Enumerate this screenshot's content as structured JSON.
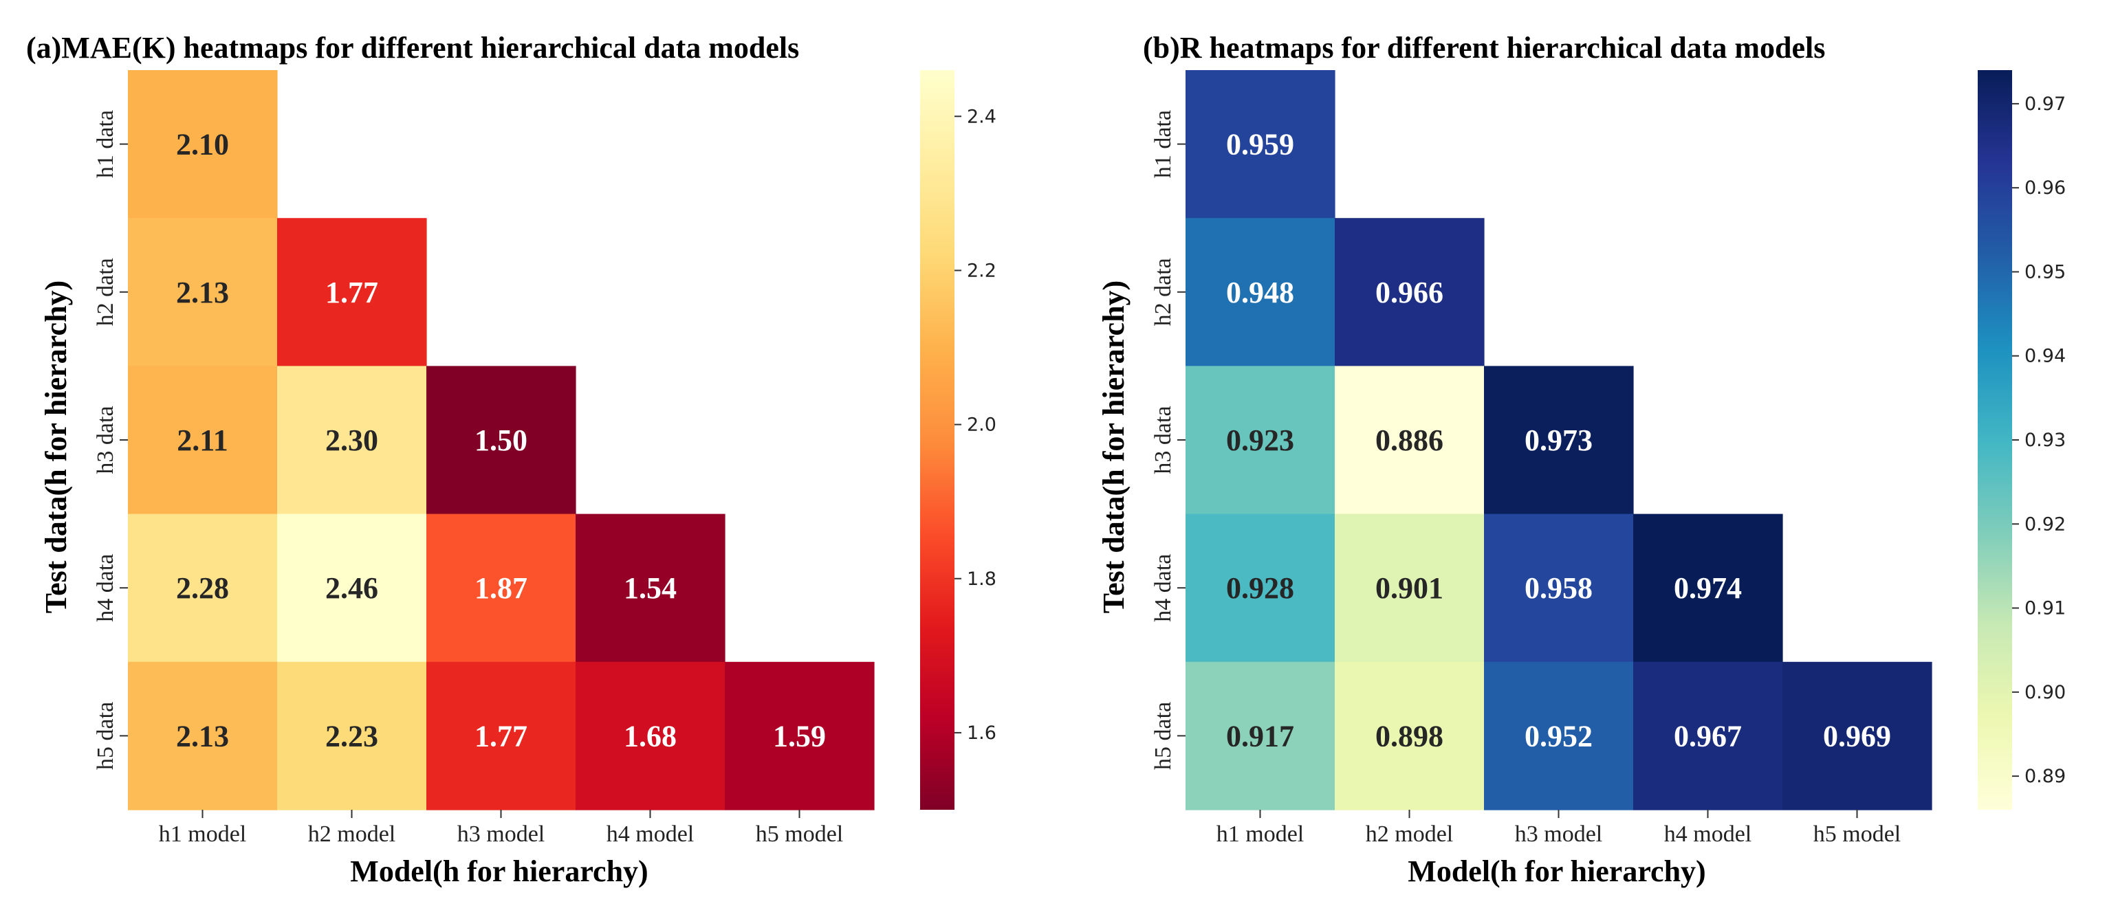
{
  "chart_data": [
    {
      "type": "heatmap",
      "title": "(a)MAE(K) heatmaps for different hierarchical data models",
      "xlabel": "Model(h for hierarchy)",
      "ylabel": "Test data(h for hierarchy)",
      "x_categories": [
        "h1 model",
        "h2 model",
        "h3 model",
        "h4 model",
        "h5 model"
      ],
      "y_categories": [
        "h1 data",
        "h2 data",
        "h3 data",
        "h4 data",
        "h5 data"
      ],
      "values": [
        [
          2.1,
          null,
          null,
          null,
          null
        ],
        [
          2.13,
          1.77,
          null,
          null,
          null
        ],
        [
          2.11,
          2.3,
          1.5,
          null,
          null
        ],
        [
          2.28,
          2.46,
          1.87,
          1.54,
          null
        ],
        [
          2.13,
          2.23,
          1.77,
          1.68,
          1.59
        ]
      ],
      "value_labels": [
        [
          "2.10",
          "",
          "",
          "",
          ""
        ],
        [
          "2.13",
          "1.77",
          "",
          "",
          ""
        ],
        [
          "2.11",
          "2.30",
          "1.50",
          "",
          ""
        ],
        [
          "2.28",
          "2.46",
          "1.87",
          "1.54",
          ""
        ],
        [
          "2.13",
          "2.23",
          "1.77",
          "1.68",
          "1.59"
        ]
      ],
      "colormap": "YlOrRd_r",
      "color_stops": [
        "#800026",
        "#bd0026",
        "#e31a1c",
        "#fc4e2a",
        "#fd8d3c",
        "#feb24c",
        "#fed976",
        "#ffeda0",
        "#ffffcc"
      ],
      "vmin": 1.5,
      "vmax": 2.46,
      "colorbar_ticks": [
        1.6,
        1.8,
        2.0,
        2.2,
        2.4
      ],
      "colorbar_tick_labels": [
        "1.6",
        "1.8",
        "2.0",
        "2.2",
        "2.4"
      ]
    },
    {
      "type": "heatmap",
      "title": "(b)R heatmaps for different hierarchical data models",
      "xlabel": "Model(h for hierarchy)",
      "ylabel": "Test data(h for hierarchy)",
      "x_categories": [
        "h1 model",
        "h2 model",
        "h3 model",
        "h4 model",
        "h5 model"
      ],
      "y_categories": [
        "h1 data",
        "h2 data",
        "h3 data",
        "h4 data",
        "h5 data"
      ],
      "values": [
        [
          0.959,
          null,
          null,
          null,
          null
        ],
        [
          0.948,
          0.966,
          null,
          null,
          null
        ],
        [
          0.923,
          0.886,
          0.973,
          null,
          null
        ],
        [
          0.928,
          0.901,
          0.958,
          0.974,
          null
        ],
        [
          0.917,
          0.898,
          0.952,
          0.967,
          0.969
        ]
      ],
      "value_labels": [
        [
          "0.959",
          "",
          "",
          "",
          ""
        ],
        [
          "0.948",
          "0.966",
          "",
          "",
          ""
        ],
        [
          "0.923",
          "0.886",
          "0.973",
          "",
          ""
        ],
        [
          "0.928",
          "0.901",
          "0.958",
          "0.974",
          ""
        ],
        [
          "0.917",
          "0.898",
          "0.952",
          "0.967",
          "0.969"
        ]
      ],
      "colormap": "YlGnBu",
      "color_stops": [
        "#ffffd9",
        "#edf8b1",
        "#c7e9b4",
        "#7fcdbb",
        "#41b6c4",
        "#1d91c0",
        "#225ea8",
        "#253494",
        "#081d58"
      ],
      "vmin": 0.886,
      "vmax": 0.974,
      "colorbar_ticks": [
        0.89,
        0.9,
        0.91,
        0.92,
        0.93,
        0.94,
        0.95,
        0.96,
        0.97
      ],
      "colorbar_tick_labels": [
        "0.89",
        "0.90",
        "0.91",
        "0.92",
        "0.93",
        "0.94",
        "0.95",
        "0.96",
        "0.97"
      ]
    }
  ]
}
